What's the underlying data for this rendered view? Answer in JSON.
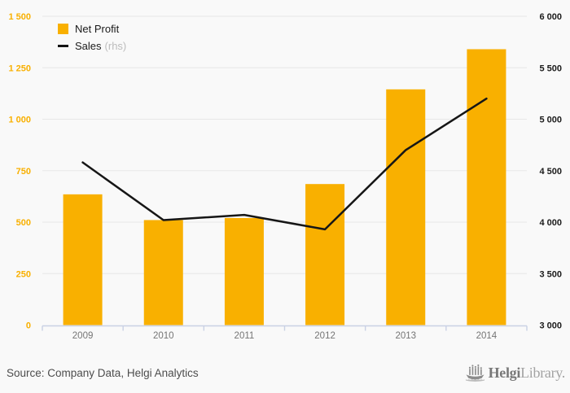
{
  "chart_data": {
    "type": "bar",
    "categories": [
      "2009",
      "2010",
      "2011",
      "2012",
      "2013",
      "2014"
    ],
    "series": [
      {
        "name": "Net Profit",
        "type": "bar",
        "axis": "left",
        "color": "#F9B000",
        "values": [
          635,
          510,
          520,
          685,
          1145,
          1340
        ]
      },
      {
        "name": "Sales",
        "type": "line",
        "axis": "right",
        "color": "#161616",
        "values": [
          4580,
          4020,
          4070,
          3930,
          4700,
          5200
        ]
      }
    ],
    "left_axis": {
      "min": 0,
      "max": 1500,
      "color": "#F9B000",
      "tick_labels": [
        "0",
        "250",
        "500",
        "750",
        "1 000",
        "1 250",
        "1 500"
      ]
    },
    "right_axis": {
      "min": 3000,
      "max": 6000,
      "color": "#1b1b1b",
      "tick_labels": [
        "3 000",
        "3 500",
        "4 000",
        "4 500",
        "5 000",
        "5 500",
        "6 000"
      ]
    },
    "grid": true,
    "grid_color": "#e7e7e7",
    "axis_color": "#c9d1e4",
    "x_label_color": "#757575",
    "legend_position": "top-left",
    "title": "",
    "xlabel": "",
    "ylabel": ""
  },
  "legend": {
    "net_profit": "Net Profit",
    "sales": "Sales",
    "sales_suffix": "(rhs)"
  },
  "footer": {
    "source": "Source: Company Data, Helgi Analytics",
    "logo_bold": "Helgi",
    "logo_light": "Library."
  }
}
